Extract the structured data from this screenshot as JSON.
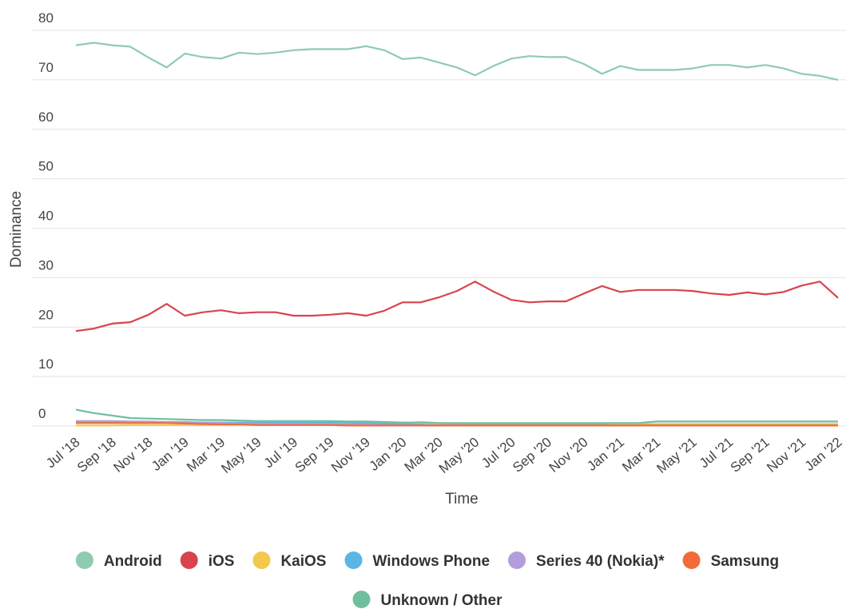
{
  "chart_data": {
    "type": "line",
    "x_label": "Time",
    "y_label": "Dominance",
    "categories": [
      "Jul '18",
      null,
      "Sep '18",
      null,
      "Nov '18",
      null,
      "Jan '19",
      null,
      "Mar '19",
      null,
      "May '19",
      null,
      "Jul '19",
      null,
      "Sep '19",
      null,
      "Nov '19",
      null,
      "Jan '20",
      null,
      "Mar '20",
      null,
      "May '20",
      null,
      "Jul '20",
      null,
      "Sep '20",
      null,
      "Nov '20",
      null,
      "Jan '21",
      null,
      "Mar '21",
      null,
      "May '21",
      null,
      "Jul '21",
      null,
      "Sep '21",
      null,
      "Nov '21",
      null,
      "Jan '22"
    ],
    "ylim": [
      0,
      80
    ],
    "yticks": [
      0,
      10,
      20,
      30,
      40,
      50,
      60,
      70,
      80
    ],
    "grid": true,
    "legend": "bottom",
    "series": [
      {
        "name": "Android",
        "color": "#8fcbb0",
        "values": [
          77,
          77.5,
          77,
          76.7,
          74.5,
          72.5,
          75.3,
          74.6,
          74.3,
          75.5,
          75.2,
          75.5,
          76,
          76.2,
          76.2,
          76.2,
          76.8,
          76,
          74.2,
          74.5,
          73.5,
          72.5,
          70.9,
          72.8,
          74.3,
          74.8,
          74.6,
          74.6,
          73.2,
          71.2,
          72.8,
          72,
          72,
          72,
          72.3,
          73,
          73,
          72.5,
          73,
          72.3,
          71.2,
          70.8,
          70
        ]
      },
      {
        "name": "iOS",
        "color": "#d9434f",
        "values": [
          19.2,
          19.7,
          20.7,
          21,
          22.5,
          24.7,
          22.3,
          23,
          23.4,
          22.8,
          23,
          23,
          22.3,
          22.3,
          22.5,
          22.8,
          22.3,
          23.3,
          25,
          25,
          26,
          27.3,
          29.2,
          27.2,
          25.5,
          25,
          25.2,
          25.2,
          26.8,
          28.3,
          27.1,
          27.5,
          27.5,
          27.5,
          27.3,
          26.8,
          26.5,
          27,
          26.6,
          27.1,
          28.4,
          29.2,
          25.9
        ]
      },
      {
        "name": "KaiOS",
        "color": "#f2c94c",
        "values": [
          0.1,
          0.1,
          0.1,
          0.2,
          0.2,
          0.2,
          0.2,
          0.2,
          0.3,
          0.3,
          0.3,
          0.3,
          0.3,
          0.4,
          0.4,
          0.4,
          0.5,
          0.5,
          0.6,
          0.8,
          0.6,
          0.5,
          0.5,
          0.5,
          0.5,
          0.5,
          0.5,
          0.5,
          0.5,
          0.5,
          0.5,
          0.4,
          0.4,
          0.4,
          0.4,
          0.4,
          0.4,
          0.4,
          0.4,
          0.4,
          0.4,
          0.4,
          0.4
        ]
      },
      {
        "name": "Windows Phone",
        "color": "#5bb5e5",
        "values": [
          0.7,
          0.7,
          0.7,
          0.7,
          0.7,
          0.7,
          0.7,
          0.7,
          0.7,
          0.7,
          0.7,
          0.7,
          0.7,
          0.7,
          0.7,
          0.7,
          0.6,
          0.5,
          0.4,
          0.3,
          0.2,
          0.2,
          0.2,
          0.2,
          0.2,
          0.2,
          0.2,
          0.2,
          0.2,
          0.2,
          0.1,
          0.1,
          0.1,
          0.1,
          0.1,
          0.1,
          0.1,
          0.1,
          0.1,
          0.1,
          0.1,
          0.1,
          0.1
        ]
      },
      {
        "name": "Series 40 (Nokia)*",
        "color": "#b39ddb",
        "values": [
          1,
          1,
          1,
          0.9,
          0.9,
          0.8,
          0.8,
          0.7,
          0.6,
          0.5,
          0.5,
          0.4,
          0.4,
          0.3,
          0.3,
          0.3,
          0.3,
          0.2,
          0.2,
          0.2,
          0.2,
          0.2,
          0.1,
          0.1,
          0.1,
          0.1,
          0.1,
          0.1,
          0.1,
          0.1,
          0.1,
          0.1,
          0.1,
          0.1,
          0.1,
          0.1,
          0.1,
          0.1,
          0.1,
          0.1,
          0.1,
          0.1,
          0.1
        ]
      },
      {
        "name": "Samsung",
        "color": "#f26b38",
        "values": [
          0.6,
          0.6,
          0.6,
          0.6,
          0.6,
          0.6,
          0.5,
          0.4,
          0.3,
          0.3,
          0.2,
          0.2,
          0.2,
          0.2,
          0.2,
          0.1,
          0.1,
          0.1,
          0.1,
          0.1,
          0.1,
          0.1,
          0.1,
          0.1,
          0.1,
          0.1,
          0.1,
          0.1,
          0.1,
          0.1,
          0.1,
          0.1,
          0.1,
          0.1,
          0.1,
          0.1,
          0.1,
          0.1,
          0.1,
          0.1,
          0.1,
          0.1,
          0.1
        ]
      },
      {
        "name": "Unknown / Other",
        "color": "#6fbf9f",
        "values": [
          3.3,
          2.6,
          2.1,
          1.6,
          1.5,
          1.4,
          1.3,
          1.2,
          1.2,
          1.1,
          1,
          1,
          1,
          1,
          1,
          0.9,
          0.9,
          0.8,
          0.7,
          0.7,
          0.6,
          0.6,
          0.6,
          0.6,
          0.6,
          0.6,
          0.6,
          0.6,
          0.6,
          0.6,
          0.6,
          0.6,
          0.9,
          0.9,
          0.9,
          0.9,
          0.9,
          0.9,
          0.9,
          0.9,
          0.9,
          0.9,
          0.9
        ]
      }
    ]
  }
}
